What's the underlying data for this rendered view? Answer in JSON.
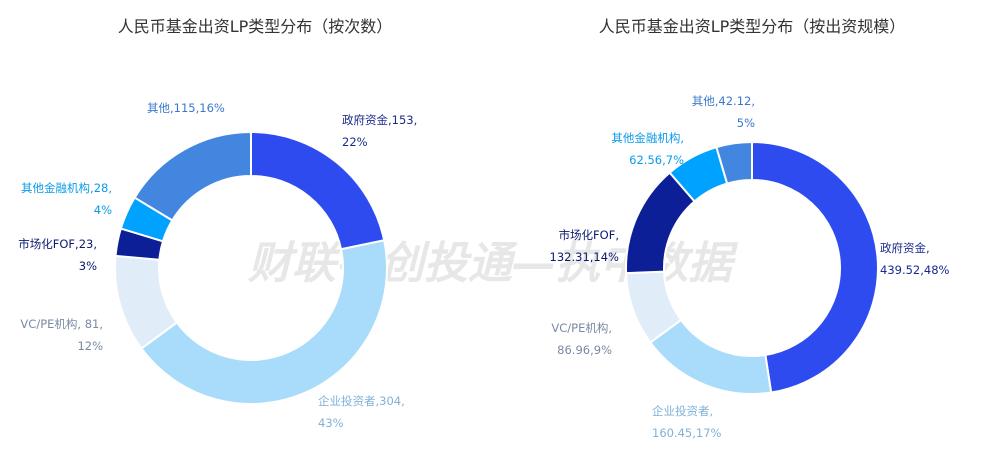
{
  "chart_data": [
    {
      "type": "pie",
      "title": "人民币基金出资LP类型分布（按次数）",
      "slices": [
        {
          "name": "政府资金",
          "value": 153,
          "percent": "22%",
          "color": "#2E4BF0",
          "label_lines": [
            "政府资金,153,",
            "22%"
          ],
          "label_color": "#1a2a8c"
        },
        {
          "name": "企业投资者",
          "value": 304,
          "percent": "43%",
          "color": "#A9DCFA",
          "label_lines": [
            "企业投资者,304,",
            "43%"
          ],
          "label_color": "#7fb2d8"
        },
        {
          "name": "VC/PE机构",
          "value": 81,
          "percent": "12%",
          "color": "#E1ECF9",
          "label_lines": [
            "VC/PE机构, 81,",
            "12%"
          ],
          "label_color": "#7a8aa3"
        },
        {
          "name": "市场化FOF",
          "value": 23,
          "percent": "3%",
          "color": "#0D1F96",
          "label_lines": [
            "市场化FOF,23,",
            "3%"
          ],
          "label_color": "#0b1a6e"
        },
        {
          "name": "其他金融机构",
          "value": 28,
          "percent": "4%",
          "color": "#00A2FF",
          "label_lines": [
            "其他金融机构,28,",
            "4%"
          ],
          "label_color": "#0a9be8"
        },
        {
          "name": "其他",
          "value": 115,
          "percent": "16%",
          "color": "#4386E0",
          "label_lines": [
            "其他,115,16%"
          ],
          "label_color": "#3b78cc"
        }
      ]
    },
    {
      "type": "pie",
      "title": "人民币基金出资LP类型分布（按出资规模）",
      "slices": [
        {
          "name": "政府资金",
          "value": 439.52,
          "percent": "48%",
          "color": "#2E4BF0",
          "label_lines": [
            "政府资金,",
            "439.52,48%"
          ],
          "label_color": "#1a2a8c"
        },
        {
          "name": "企业投资者",
          "value": 160.45,
          "percent": "17%",
          "color": "#A9DCFA",
          "label_lines": [
            "企业投资者,",
            "160.45,17%"
          ],
          "label_color": "#7fb2d8"
        },
        {
          "name": "VC/PE机构",
          "value": 86.96,
          "percent": "9%",
          "color": "#E1ECF9",
          "label_lines": [
            "VC/PE机构,",
            "86.96,9%"
          ],
          "label_color": "#7a8aa3"
        },
        {
          "name": "市场化FOF",
          "value": 132.31,
          "percent": "14%",
          "color": "#0D1F96",
          "label_lines": [
            "市场化FOF,",
            "132.31,14%"
          ],
          "label_color": "#0b1a6e"
        },
        {
          "name": "其他金融机构",
          "value": 62.56,
          "percent": "7%",
          "color": "#00A2FF",
          "label_lines": [
            "其他金融机构,",
            "62.56,7%"
          ],
          "label_color": "#0a9be8"
        },
        {
          "name": "其他",
          "value": 42.12,
          "percent": "5%",
          "color": "#4386E0",
          "label_lines": [
            "其他,42.12,",
            "5%"
          ],
          "label_color": "#3b78cc"
        }
      ]
    }
  ],
  "watermark": "财联社创投通—执中数据"
}
